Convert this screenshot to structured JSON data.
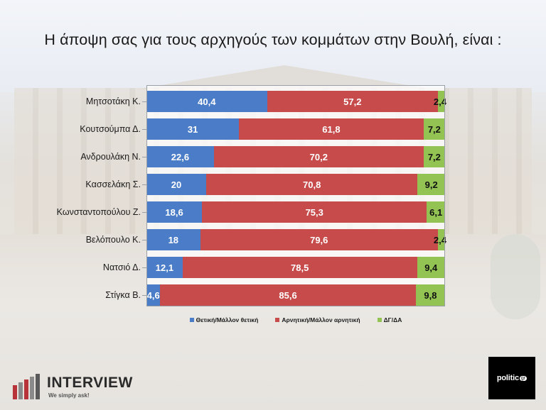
{
  "title": "Η άποψη σας για τους αρχηγούς των κομμάτων στην Βουλή,  είναι :",
  "colors": {
    "positive": "#4a7cc7",
    "negative": "#c74b4b",
    "dk": "#92c353"
  },
  "legend": [
    {
      "label": "Θετική/Μάλλον θετική",
      "color": "#4a7cc7"
    },
    {
      "label": "Αρνητική/Μάλλον αρνητική",
      "color": "#c74b4b"
    },
    {
      "label": "ΔΓ/ΔΑ",
      "color": "#92c353"
    }
  ],
  "chart_data": {
    "type": "bar",
    "orientation": "horizontal",
    "stacked": true,
    "title": "Η άποψη σας για τους αρχηγούς των κομμάτων στην Βουλή,  είναι :",
    "categories": [
      "Μητσοτάκη Κ.",
      "Κουτσούμπα Δ.",
      "Ανδρουλάκη Ν.",
      "Κασσελάκη Σ.",
      "Κωνσταντοπούλου Ζ.",
      "Βελόπουλο Κ.",
      "Νατσιό Δ.",
      "Στίγκα Β."
    ],
    "series": [
      {
        "name": "Θετική/Μάλλον θετική",
        "values": [
          40.4,
          31,
          22.6,
          20,
          18.6,
          18,
          12.1,
          4.6
        ],
        "labels": [
          "40,4",
          "31",
          "22,6",
          "20",
          "18,6",
          "18",
          "12,1",
          "4,6"
        ]
      },
      {
        "name": "Αρνητική/Μάλλον αρνητική",
        "values": [
          57.2,
          61.8,
          70.2,
          70.8,
          75.3,
          79.6,
          78.5,
          85.6
        ],
        "labels": [
          "57,2",
          "61,8",
          "70,2",
          "70,8",
          "75,3",
          "79,6",
          "78,5",
          "85,6"
        ]
      },
      {
        "name": "ΔΓ/ΔΑ",
        "values": [
          2.4,
          7.2,
          7.2,
          9.2,
          6.1,
          2.4,
          9.4,
          9.8
        ],
        "labels": [
          "2,4",
          "7,2",
          "7,2",
          "9,2",
          "6,1",
          "2,4",
          "9,4",
          "9,8"
        ]
      }
    ],
    "xlim": [
      0,
      100
    ],
    "legend_position": "bottom"
  },
  "branding": {
    "logo_word": "INTERVIEW",
    "logo_tagline": "We simply ask!",
    "badge_text": "politic",
    "badge_suffix": "gr"
  }
}
